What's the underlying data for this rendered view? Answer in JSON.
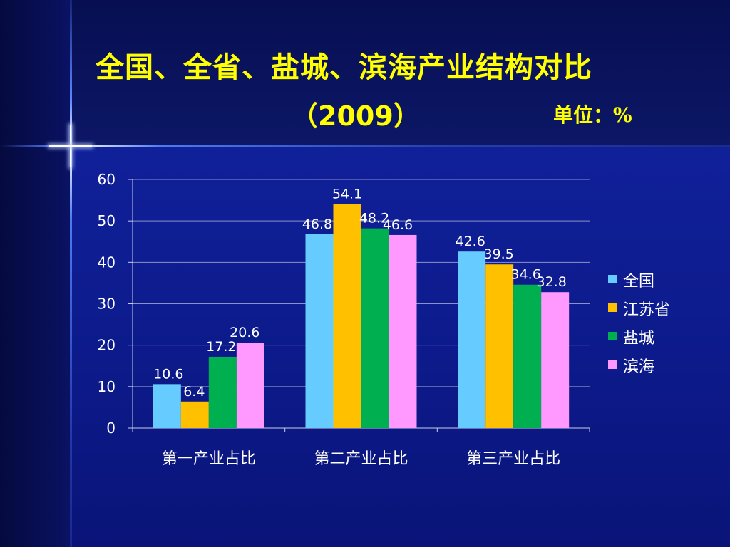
{
  "slide": {
    "title_line1": "全国、全省、盐城、滨海产业结构对比",
    "title_line2": "（2009）",
    "unit_label": "单位：%"
  },
  "chart_data": {
    "type": "bar",
    "categories": [
      "第一产业占比",
      "第二产业占比",
      "第三产业占比"
    ],
    "series": [
      {
        "name": "全国",
        "values": [
          10.6,
          46.8,
          42.6
        ],
        "color": "#66ccff"
      },
      {
        "name": "江苏省",
        "values": [
          6.4,
          54.1,
          39.5
        ],
        "color": "#ffc000"
      },
      {
        "name": "盐城",
        "values": [
          17.2,
          48.2,
          34.6
        ],
        "color": "#00b050"
      },
      {
        "name": "滨海",
        "values": [
          20.6,
          46.6,
          32.8
        ],
        "color": "#ff99ff"
      }
    ],
    "ylim": [
      0,
      60
    ],
    "yticks": [
      0,
      10,
      20,
      30,
      40,
      50,
      60
    ],
    "grid": true,
    "legend_position": "right",
    "data_labels": true
  }
}
